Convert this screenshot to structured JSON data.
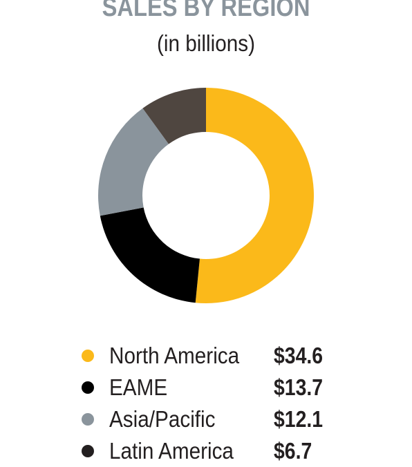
{
  "chart_data": {
    "type": "pie",
    "title": "SALES BY REGION",
    "subtitle": "(in billions)",
    "donut": true,
    "categories": [
      "North America",
      "EAME",
      "Asia/Pacific",
      "Latin America"
    ],
    "values": [
      34.6,
      13.7,
      12.1,
      6.7
    ],
    "value_labels": [
      "$34.6",
      "$13.7",
      "$12.1",
      "$6.7"
    ],
    "colors": [
      "#fbb91a",
      "#000000",
      "#8a949c",
      "#4f4640"
    ],
    "legend_dot_colors": [
      "#fbb91a",
      "#000000",
      "#8a949c",
      "#231f20"
    ],
    "legend_position": "bottom",
    "start_angle": "12 o'clock",
    "direction": "clockwise"
  }
}
